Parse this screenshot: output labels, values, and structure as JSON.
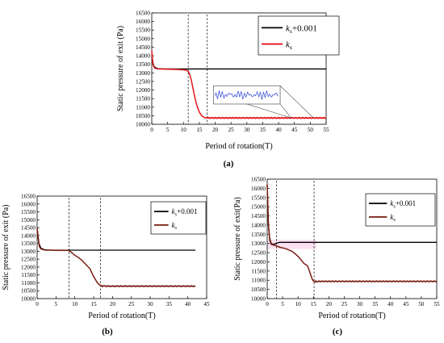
{
  "colors": {
    "black": "#000000",
    "ks_red": "#e0161b",
    "ks_brown": "#7a1f12",
    "band_pink": "#f1a9d8",
    "inset_blue": "#2a43d6",
    "inset_frame": "#555555"
  },
  "chart_data": [
    {
      "type": "line",
      "panel_label": "(a)",
      "xlabel": "Period of rotation(T)",
      "ylabel": "Static pressure of exit (Pa)",
      "xlim": [
        0,
        55
      ],
      "ylim": [
        10000,
        16500
      ],
      "xticks": [
        0,
        5,
        10,
        15,
        20,
        25,
        30,
        35,
        40,
        45,
        50,
        55
      ],
      "yticks": [
        10000,
        10500,
        11000,
        11500,
        12000,
        12500,
        13000,
        13500,
        14000,
        14500,
        15000,
        15500,
        16000,
        16500
      ],
      "vlines": [
        11.5,
        17.5
      ],
      "legend": [
        {
          "sym": "k",
          "sub": "s",
          "suffix": "+0.001",
          "color": "#000000"
        },
        {
          "sym": "k",
          "sub": "s",
          "suffix": "",
          "color": "#e0161b"
        }
      ],
      "series": [
        {
          "color": "#000000",
          "x": [
            0,
            0.5,
            1,
            2,
            4,
            55
          ],
          "y": [
            14100,
            13450,
            13320,
            13250,
            13230,
            13230
          ]
        },
        {
          "color": "#e0161b",
          "x": [
            0,
            0.3,
            0.6,
            1,
            2,
            4,
            6,
            8,
            10,
            11,
            11.5,
            12,
            12.5,
            13,
            13.5,
            14,
            14.5,
            15,
            15.5,
            16,
            16.5,
            17,
            17.5,
            18,
            19,
            20,
            55
          ],
          "y": [
            14300,
            13600,
            13380,
            13270,
            13230,
            13220,
            13210,
            13200,
            13180,
            13150,
            13080,
            12900,
            12550,
            12100,
            11650,
            11250,
            10950,
            10720,
            10560,
            10460,
            10400,
            10380,
            10370,
            10370,
            10370,
            10370,
            10370
          ]
        },
        {
          "color": "#e0161b",
          "ripple_from": 17.5,
          "ripple_to": 55,
          "ripple_amp": 45
        }
      ],
      "inset": {
        "x0": 19.5,
        "x1": 40.5,
        "y0": 11180,
        "y1": 12250,
        "target": [
          44,
          51,
          10370
        ]
      }
    },
    {
      "type": "line",
      "panel_label": "(b)",
      "xlabel": "Period of rotation(T)",
      "ylabel": "Static pressure of exit (Pa)",
      "xlim": [
        0,
        45
      ],
      "ylim": [
        10000,
        16500
      ],
      "xticks": [
        0,
        5,
        10,
        15,
        20,
        25,
        30,
        35,
        40,
        45
      ],
      "yticks": [
        10000,
        10500,
        11000,
        11500,
        12000,
        12500,
        13000,
        13500,
        14000,
        14500,
        15000,
        15500,
        16000,
        16500
      ],
      "vlines": [
        8.5,
        16.8
      ],
      "legend": [
        {
          "sym": "k",
          "sub": "s",
          "suffix": "+0.001",
          "color": "#000000"
        },
        {
          "sym": "k",
          "sub": "s",
          "suffix": "",
          "color": "#7a1f12"
        }
      ],
      "series": [
        {
          "color": "#000000",
          "x": [
            0,
            0.5,
            1,
            2,
            4,
            42
          ],
          "y": [
            14400,
            13500,
            13200,
            13100,
            13070,
            13070
          ]
        },
        {
          "color": "#7a1f12",
          "x": [
            0,
            0.3,
            0.6,
            1,
            2,
            4,
            6,
            8,
            8.5,
            9,
            10,
            11,
            12,
            13,
            14,
            15,
            15.5,
            16,
            16.5,
            17,
            18,
            19,
            42
          ],
          "y": [
            14500,
            13800,
            13300,
            13150,
            13080,
            13070,
            13060,
            13060,
            13030,
            12950,
            12750,
            12600,
            12400,
            12150,
            11900,
            11400,
            11200,
            11000,
            10880,
            10820,
            10800,
            10790,
            10790
          ]
        },
        {
          "color": "#7a1f12",
          "ripple_from": 17,
          "ripple_to": 42,
          "ripple_amp": 40
        }
      ],
      "band": {
        "x0": 17,
        "x1": 42,
        "y0": 10720,
        "y1": 10860
      }
    },
    {
      "type": "line",
      "panel_label": "(c)",
      "xlabel": "Period of rotation(T)",
      "ylabel": "Static pressure of exit(Pa)",
      "xlim": [
        0,
        55
      ],
      "ylim": [
        10000,
        16500
      ],
      "xticks": [
        0,
        5,
        10,
        15,
        20,
        25,
        30,
        35,
        40,
        45,
        50,
        55
      ],
      "yticks": [
        10000,
        10500,
        11000,
        11500,
        12000,
        12500,
        13000,
        13500,
        14000,
        14500,
        15000,
        15500,
        16000,
        16500
      ],
      "vlines": [
        3,
        15.2
      ],
      "legend": [
        {
          "sym": "k",
          "sub": "s",
          "suffix": "+0.001",
          "color": "#000000"
        },
        {
          "sym": "k",
          "sub": "s",
          "suffix": "",
          "color": "#7a1f12"
        }
      ],
      "series": [
        {
          "color": "#000000",
          "x": [
            0,
            0.4,
            0.8,
            1.3,
            2,
            2.5,
            3,
            4,
            55
          ],
          "y": [
            16200,
            14000,
            13300,
            13000,
            12950,
            12980,
            13020,
            13060,
            13060
          ]
        },
        {
          "color": "#7a1f12",
          "x": [
            0,
            0.4,
            0.8,
            1.3,
            2,
            3,
            4,
            6,
            8,
            9,
            10,
            11,
            12,
            12.5,
            13,
            13.5,
            14,
            14.5,
            15,
            15.5,
            16,
            17,
            55
          ],
          "y": [
            16200,
            14000,
            13200,
            12950,
            12920,
            12870,
            12800,
            12720,
            12580,
            12450,
            12300,
            12100,
            11900,
            11850,
            11800,
            11600,
            11350,
            11100,
            10950,
            10900,
            10920,
            10940,
            10940
          ]
        },
        {
          "color": "#7a1f12",
          "ripple_from": 15.5,
          "ripple_to": 55,
          "ripple_amp": 35
        }
      ],
      "band": {
        "x0": 0,
        "x1": 16,
        "y0": 12700,
        "y1": 13200
      }
    }
  ]
}
